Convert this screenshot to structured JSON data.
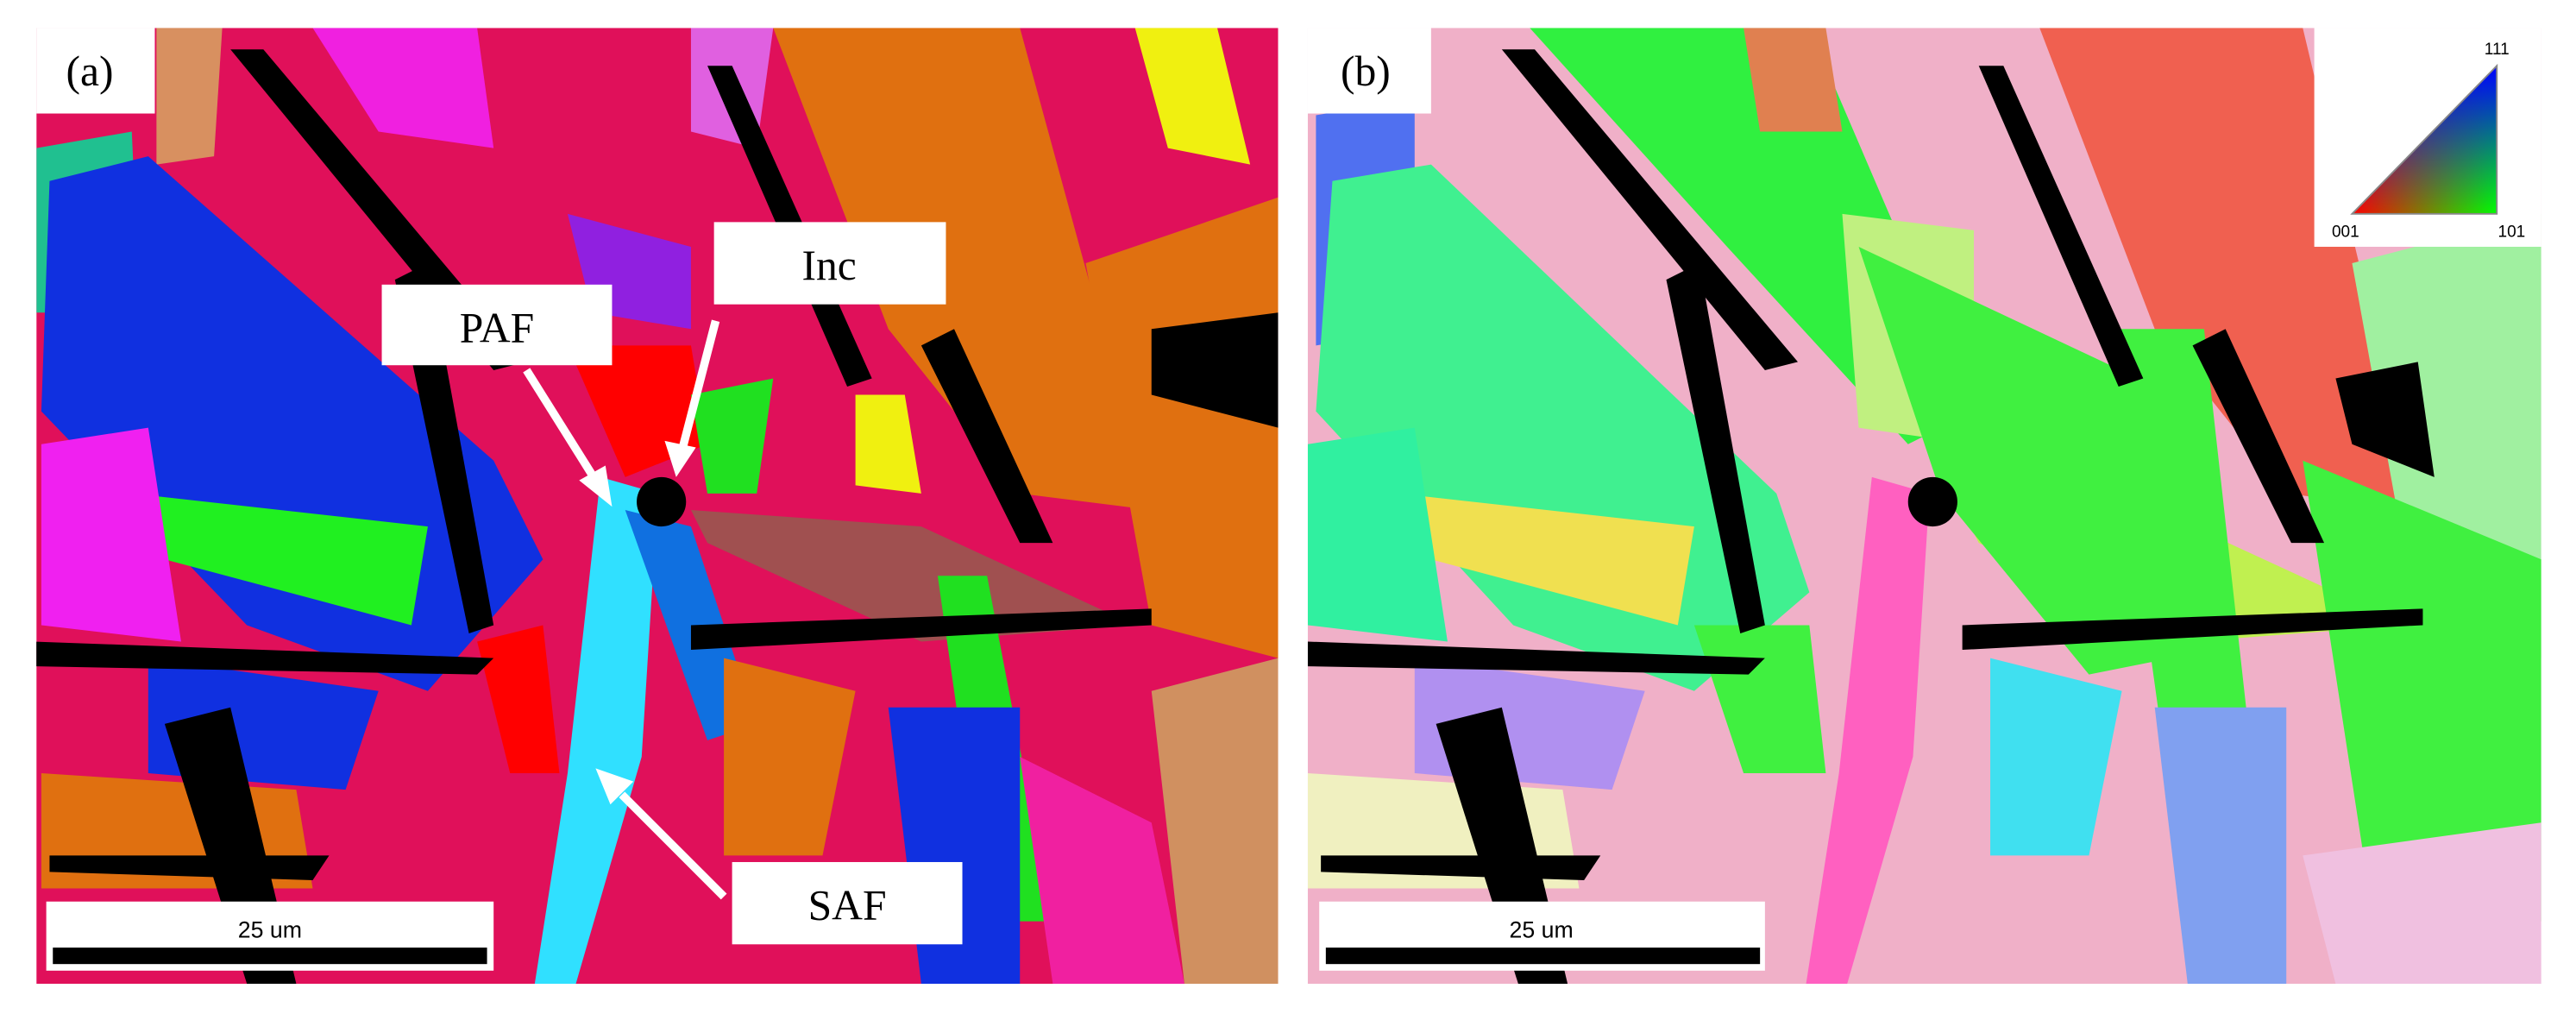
{
  "panels": [
    {
      "label": "(a)",
      "annotations": {
        "inc": "Inc",
        "paf": "PAF",
        "saf": "SAF"
      },
      "scale_bar": "25 um"
    },
    {
      "label": "(b)",
      "scale_bar": "25 um",
      "legend": {
        "top": "111",
        "left": "001",
        "right": "101"
      }
    }
  ]
}
